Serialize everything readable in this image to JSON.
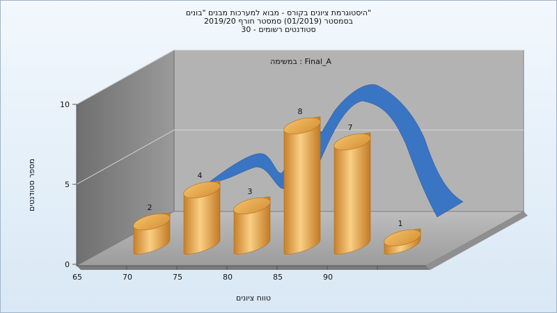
{
  "chart_data": {
    "type": "bar",
    "title_lines": [
      "היסטוגרמת ציונים בקורס - מבוא למערכות מבנים \"בונים\"",
      "בסמסטר  (01/2019)  סמסטר חורף 2019/20",
      "סטודנטים רשומים - 30"
    ],
    "annotation": "במשימה : Final_A",
    "xlabel": "טווח ציונים",
    "ylabel": "מספר סטודנטים",
    "x_ticks": [
      "65",
      "70",
      "75",
      "80",
      "85",
      "90"
    ],
    "y_ticks": [
      "0",
      "5",
      "10"
    ],
    "ylim": [
      0,
      10
    ],
    "categories": [
      "65-70",
      "70-75",
      "75-80",
      "80-85",
      "85-90",
      "90-95"
    ],
    "values": [
      2,
      4,
      3,
      8,
      7,
      1
    ],
    "value_labels": [
      "2",
      "4",
      "3",
      "8",
      "7",
      "1"
    ],
    "curve_type": "normal-distribution-overlay",
    "colors": {
      "bar": "#e8a94a",
      "curve": "#2f6bbf",
      "back_wall": "#b3b3b3",
      "side_wall": "#8a8a8a",
      "floor": "#a8a8a8"
    }
  }
}
